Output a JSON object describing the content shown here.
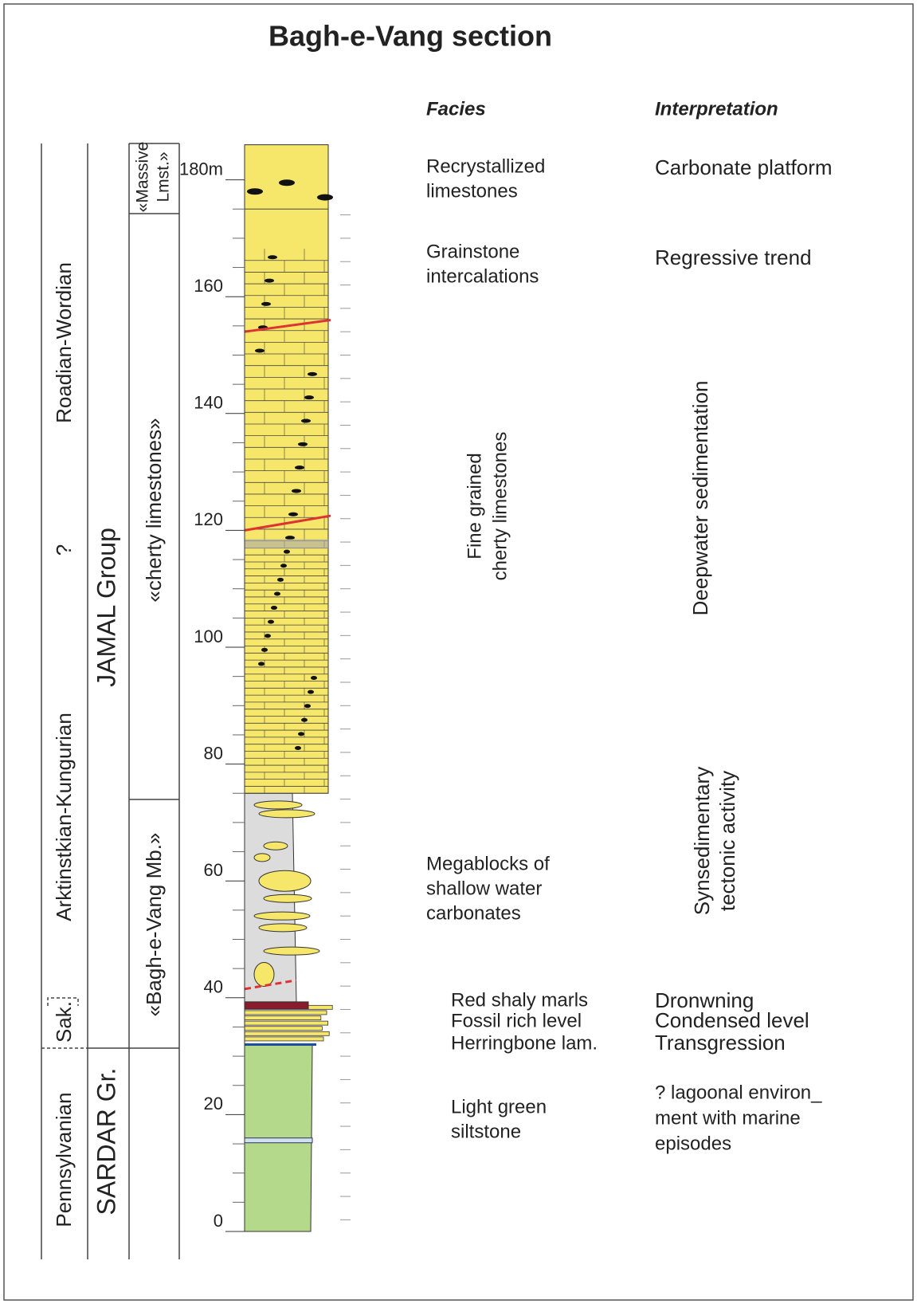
{
  "title": "Bagh-e-Vang section",
  "headers": {
    "facies": "Facies",
    "interpretation": "Interpretation"
  },
  "stages": [
    "Pennsylvanian",
    "Sak.",
    "Arktinstkian-Kungurian",
    "?",
    "Roadian-Wordian"
  ],
  "groups": [
    "SARDAR Gr.",
    "JAMAL Group"
  ],
  "members": {
    "bagh_e_vang": "«Bagh-e-Vang Mb.»",
    "cherty": "«cherty limestones»",
    "massive": [
      "«Massive",
      "Lmst.»"
    ]
  },
  "depth_labels": [
    "0",
    "20",
    "40",
    "60",
    "80",
    "100",
    "120",
    "140",
    "160",
    "180m"
  ],
  "facies": {
    "recrystallized": [
      "Recrystallized",
      "limestones"
    ],
    "grainstone": [
      "Grainstone",
      "intercalations"
    ],
    "fine_grained": [
      "Fine grained",
      "cherty limestones"
    ],
    "megablocks": [
      "Megablocks of",
      "shallow water",
      "carbonates"
    ],
    "red_marls": "Red shaly marls",
    "fossil": "Fossil rich level",
    "herringbone": "Herringbone lam.",
    "siltstone": [
      "Light green",
      "siltstone"
    ]
  },
  "interpretation": {
    "platform": "Carbonate platform",
    "regressive": "Regressive trend",
    "deepwater": "Deepwater sedimentation",
    "tectonic": [
      "Synsedimentary",
      "tectonic activity"
    ],
    "drowning": "Dronwning",
    "condensed": "Condensed level",
    "transgression": "Transgression",
    "lagoonal": [
      "? lagoonal environ_",
      "ment with marine",
      "episodes"
    ]
  }
}
